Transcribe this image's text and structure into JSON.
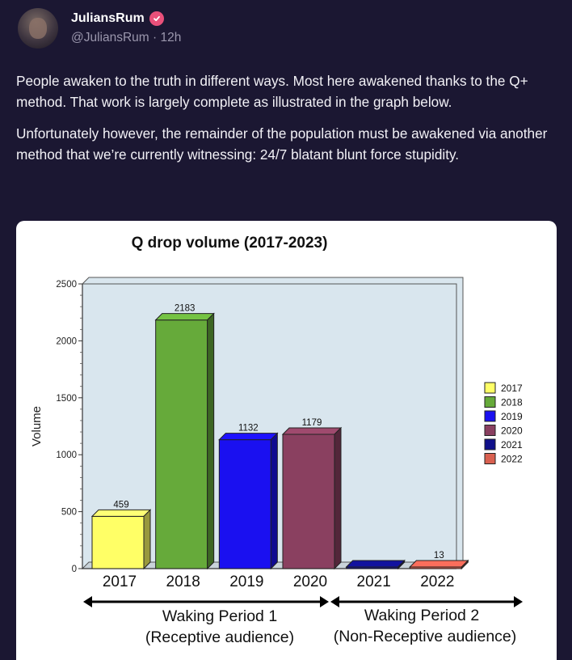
{
  "post": {
    "author_name": "JuliansRum",
    "handle": "@JuliansRum",
    "separator": "·",
    "time": "12h",
    "paragraphs": [
      "People awaken to the truth in different ways. Most here awakened thanks to the Q+ method. That work is largely complete as illustrated in the graph below.",
      "Unfortunately however, the remainder of the population must be awakened via another method that we’re currently witnessing: 24/7 blatant blunt force stupidity."
    ],
    "verified_color": "#e9507a",
    "icons": {
      "avatar": "avatar",
      "verified": "verified-badge-icon"
    }
  },
  "chart_data": {
    "type": "bar",
    "title": "Q drop volume (2017-2023)",
    "ylabel": "Volume",
    "xlabel": "",
    "categories": [
      "2017",
      "2018",
      "2019",
      "2020",
      "2021",
      "2022"
    ],
    "values": [
      459,
      2183,
      1132,
      1179,
      0,
      13
    ],
    "value_labels": [
      "459",
      "2183",
      "1132",
      "1179",
      "",
      "13"
    ],
    "colors": [
      "#ffff66",
      "#66aa3a",
      "#1a10f0",
      "#8a4060",
      "#10108a",
      "#d96050"
    ],
    "ylim": [
      0,
      2500
    ],
    "yticks": [
      "0",
      "500",
      "1000",
      "1500",
      "2000",
      "2500"
    ],
    "grid": false,
    "legend": {
      "position": "right",
      "entries": [
        "2017",
        "2018",
        "2019",
        "2020",
        "2021",
        "2022"
      ]
    },
    "annotations": [
      {
        "line1": "Waking Period 1",
        "line2": "(Receptive audience)"
      },
      {
        "line1": "Waking Period 2",
        "line2": "(Non-Receptive audience)"
      }
    ]
  }
}
